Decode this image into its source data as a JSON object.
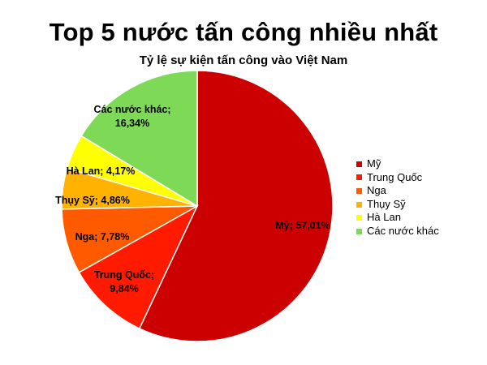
{
  "page_title": "Top 5 nước tấn công nhiều nhất",
  "chart_data": {
    "type": "pie",
    "title": "Tỷ lệ sự kiện tấn công vào Việt Nam",
    "slices": [
      {
        "name": "Mỹ",
        "value": 57.01,
        "label": "Mỹ; 57,01%",
        "color": "#cc0000"
      },
      {
        "name": "Trung Quốc",
        "value": 9.84,
        "label": "Trung Quốc; 9,84%",
        "color": "#ff1a00"
      },
      {
        "name": "Nga",
        "value": 7.78,
        "label": "Nga; 7,78%",
        "color": "#ff5a00"
      },
      {
        "name": "Thụy Sỹ",
        "value": 4.86,
        "label": "Thụy Sỹ; 4,86%",
        "color": "#ffb300"
      },
      {
        "name": "Hà Lan",
        "value": 4.17,
        "label": "Hà Lan; 4,17%",
        "color": "#ffff00"
      },
      {
        "name": "Các nước khác",
        "value": 16.34,
        "label": "Các nước khác; 16,34%",
        "color": "#7ed957"
      }
    ],
    "legend_position": "right"
  }
}
